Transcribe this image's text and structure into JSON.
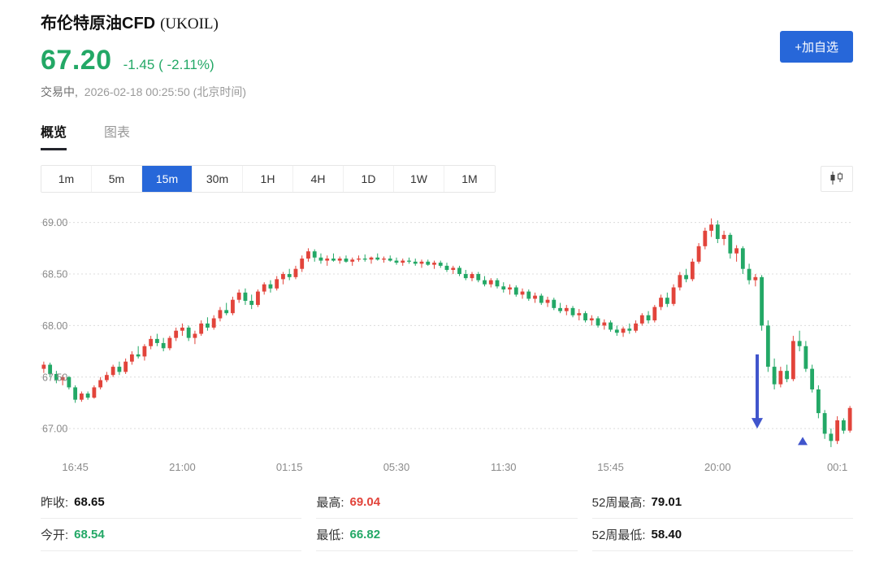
{
  "header": {
    "title": "布伦特原油CFD",
    "symbol": "(UKOIL)",
    "price": "67.20",
    "change": "-1.45 ( -2.11%)",
    "status": "交易中,",
    "timestamp": "2026-02-18 00:25:50",
    "timezone": "(北京时间)",
    "add_watchlist_label": "+加自选"
  },
  "colors": {
    "up_red": "#e2443b",
    "down_green": "#23a866",
    "accent_blue": "#2767d9",
    "annotation_blue": "#4055cc"
  },
  "tabs": [
    {
      "label": "概览",
      "active": true
    },
    {
      "label": "图表",
      "active": false
    }
  ],
  "timeframes": [
    {
      "label": "1m",
      "active": false
    },
    {
      "label": "5m",
      "active": false
    },
    {
      "label": "15m",
      "active": true
    },
    {
      "label": "30m",
      "active": false
    },
    {
      "label": "1H",
      "active": false
    },
    {
      "label": "4H",
      "active": false
    },
    {
      "label": "1D",
      "active": false
    },
    {
      "label": "1W",
      "active": false
    },
    {
      "label": "1M",
      "active": false
    }
  ],
  "chart_data": {
    "type": "candlestick",
    "interval": "15m",
    "up_color": "#e2443b",
    "down_color": "#23a866",
    "ylim": [
      66.78,
      69.1
    ],
    "y_ticks": [
      "69.00",
      "68.50",
      "68.00",
      "67.50",
      "67.00"
    ],
    "x_ticks": [
      "16:45",
      "21:00",
      "01:15",
      "05:30",
      "11:30",
      "15:45",
      "20:00",
      "00:1"
    ],
    "x_tick_indices": [
      5,
      22,
      39,
      56,
      73,
      90,
      107,
      126
    ],
    "candles": [
      [
        67.58,
        67.65,
        67.54,
        67.62
      ],
      [
        67.62,
        67.64,
        67.5,
        67.53
      ],
      [
        67.53,
        67.56,
        67.44,
        67.47
      ],
      [
        67.47,
        67.52,
        67.42,
        67.5
      ],
      [
        67.5,
        67.51,
        67.38,
        67.4
      ],
      [
        67.4,
        67.42,
        67.25,
        67.28
      ],
      [
        67.28,
        67.36,
        67.26,
        67.34
      ],
      [
        67.34,
        67.36,
        67.28,
        67.3
      ],
      [
        67.3,
        67.42,
        67.29,
        67.4
      ],
      [
        67.4,
        67.5,
        67.38,
        67.47
      ],
      [
        67.47,
        67.55,
        67.45,
        67.52
      ],
      [
        67.52,
        67.62,
        67.5,
        67.6
      ],
      [
        67.6,
        67.65,
        67.52,
        67.55
      ],
      [
        67.55,
        67.68,
        67.53,
        67.65
      ],
      [
        67.65,
        67.75,
        67.62,
        67.72
      ],
      [
        67.72,
        67.8,
        67.68,
        67.7
      ],
      [
        67.7,
        67.82,
        67.66,
        67.8
      ],
      [
        67.8,
        67.9,
        67.77,
        67.87
      ],
      [
        67.87,
        67.92,
        67.8,
        67.83
      ],
      [
        67.83,
        67.88,
        67.75,
        67.78
      ],
      [
        67.78,
        67.9,
        67.76,
        67.88
      ],
      [
        67.88,
        67.98,
        67.85,
        67.95
      ],
      [
        67.95,
        68.02,
        67.9,
        67.98
      ],
      [
        67.98,
        68.0,
        67.85,
        67.88
      ],
      [
        67.88,
        67.95,
        67.82,
        67.92
      ],
      [
        67.92,
        68.05,
        67.9,
        68.02
      ],
      [
        68.02,
        68.08,
        67.95,
        67.98
      ],
      [
        67.98,
        68.1,
        67.96,
        68.07
      ],
      [
        68.07,
        68.18,
        68.04,
        68.15
      ],
      [
        68.15,
        68.22,
        68.1,
        68.12
      ],
      [
        68.12,
        68.28,
        68.1,
        68.25
      ],
      [
        68.25,
        68.35,
        68.22,
        68.32
      ],
      [
        68.32,
        68.36,
        68.2,
        68.24
      ],
      [
        68.24,
        68.3,
        68.16,
        68.2
      ],
      [
        68.2,
        68.35,
        68.18,
        68.33
      ],
      [
        68.33,
        68.42,
        68.3,
        68.4
      ],
      [
        68.4,
        68.44,
        68.32,
        68.36
      ],
      [
        68.36,
        68.48,
        68.34,
        68.45
      ],
      [
        68.45,
        68.52,
        68.4,
        68.5
      ],
      [
        68.5,
        68.55,
        68.44,
        68.47
      ],
      [
        68.47,
        68.58,
        68.45,
        68.55
      ],
      [
        68.55,
        68.68,
        68.52,
        68.65
      ],
      [
        68.65,
        68.75,
        68.62,
        68.72
      ],
      [
        68.72,
        68.74,
        68.62,
        68.66
      ],
      [
        68.66,
        68.7,
        68.6,
        68.63
      ],
      [
        68.63,
        68.68,
        68.58,
        68.65
      ],
      [
        68.65,
        68.7,
        68.62,
        68.63
      ],
      [
        68.63,
        68.67,
        68.6,
        68.65
      ],
      [
        68.65,
        68.68,
        68.61,
        68.62
      ],
      [
        68.62,
        68.66,
        68.58,
        68.64
      ],
      [
        68.64,
        68.68,
        68.62,
        68.65
      ],
      [
        68.65,
        68.69,
        68.62,
        68.64
      ],
      [
        68.64,
        68.67,
        68.6,
        68.66
      ],
      [
        68.66,
        68.7,
        68.63,
        68.64
      ],
      [
        68.64,
        68.67,
        68.61,
        68.65
      ],
      [
        68.65,
        68.68,
        68.62,
        68.63
      ],
      [
        68.63,
        68.66,
        68.59,
        68.61
      ],
      [
        68.61,
        68.65,
        68.58,
        68.63
      ],
      [
        68.63,
        68.66,
        68.6,
        68.62
      ],
      [
        68.62,
        68.65,
        68.58,
        68.6
      ],
      [
        68.6,
        68.64,
        68.56,
        68.62
      ],
      [
        68.62,
        68.64,
        68.58,
        68.59
      ],
      [
        68.59,
        68.63,
        68.55,
        68.61
      ],
      [
        68.61,
        68.63,
        68.56,
        68.58
      ],
      [
        68.58,
        68.61,
        68.52,
        68.54
      ],
      [
        68.54,
        68.58,
        68.5,
        68.56
      ],
      [
        68.56,
        68.58,
        68.48,
        68.5
      ],
      [
        68.5,
        68.54,
        68.44,
        68.46
      ],
      [
        68.46,
        68.52,
        68.43,
        68.5
      ],
      [
        68.5,
        68.52,
        68.42,
        68.44
      ],
      [
        68.44,
        68.48,
        68.38,
        68.4
      ],
      [
        68.4,
        68.46,
        68.37,
        68.44
      ],
      [
        68.44,
        68.46,
        68.36,
        68.38
      ],
      [
        68.38,
        68.42,
        68.32,
        68.35
      ],
      [
        68.35,
        68.4,
        68.3,
        68.37
      ],
      [
        68.37,
        68.39,
        68.28,
        68.3
      ],
      [
        68.3,
        68.36,
        68.26,
        68.33
      ],
      [
        68.33,
        68.35,
        68.24,
        68.26
      ],
      [
        68.26,
        68.32,
        68.22,
        68.29
      ],
      [
        68.29,
        68.31,
        68.2,
        68.22
      ],
      [
        68.22,
        68.28,
        68.18,
        68.25
      ],
      [
        68.25,
        68.27,
        68.15,
        68.17
      ],
      [
        68.17,
        68.22,
        68.12,
        68.14
      ],
      [
        68.14,
        68.2,
        68.1,
        68.17
      ],
      [
        68.17,
        68.19,
        68.08,
        68.1
      ],
      [
        68.1,
        68.16,
        68.05,
        68.12
      ],
      [
        68.12,
        68.14,
        68.03,
        68.05
      ],
      [
        68.05,
        68.1,
        68.0,
        68.07
      ],
      [
        68.07,
        68.09,
        67.98,
        68.0
      ],
      [
        68.0,
        68.06,
        67.96,
        68.03
      ],
      [
        68.03,
        68.05,
        67.94,
        67.96
      ],
      [
        67.96,
        68.0,
        67.9,
        67.93
      ],
      [
        67.93,
        67.99,
        67.89,
        67.97
      ],
      [
        67.97,
        68.02,
        67.92,
        67.95
      ],
      [
        67.95,
        68.05,
        67.93,
        68.02
      ],
      [
        68.02,
        68.12,
        68.0,
        68.1
      ],
      [
        68.1,
        68.14,
        68.02,
        68.05
      ],
      [
        68.05,
        68.2,
        68.03,
        68.18
      ],
      [
        68.18,
        68.3,
        68.15,
        68.27
      ],
      [
        68.27,
        68.32,
        68.18,
        68.21
      ],
      [
        68.21,
        68.4,
        68.19,
        68.37
      ],
      [
        68.37,
        68.52,
        68.34,
        68.49
      ],
      [
        68.49,
        68.55,
        68.42,
        68.45
      ],
      [
        68.45,
        68.65,
        68.43,
        68.62
      ],
      [
        68.62,
        68.8,
        68.6,
        68.77
      ],
      [
        68.77,
        68.95,
        68.74,
        68.92
      ],
      [
        68.92,
        69.04,
        68.86,
        68.98
      ],
      [
        68.98,
        69.02,
        68.8,
        68.84
      ],
      [
        68.84,
        68.92,
        68.78,
        68.88
      ],
      [
        68.88,
        68.9,
        68.65,
        68.7
      ],
      [
        68.7,
        68.78,
        68.62,
        68.75
      ],
      [
        68.75,
        68.77,
        68.5,
        68.55
      ],
      [
        68.55,
        68.6,
        68.4,
        68.44
      ],
      [
        68.44,
        68.5,
        68.38,
        68.47
      ],
      [
        68.47,
        68.49,
        67.95,
        68.0
      ],
      [
        68.0,
        68.05,
        67.55,
        67.6
      ],
      [
        67.6,
        67.68,
        67.38,
        67.43
      ],
      [
        67.43,
        67.6,
        67.4,
        67.56
      ],
      [
        67.56,
        67.62,
        67.45,
        67.48
      ],
      [
        67.48,
        67.9,
        67.46,
        67.85
      ],
      [
        67.85,
        67.95,
        67.75,
        67.8
      ],
      [
        67.8,
        67.85,
        67.55,
        67.58
      ],
      [
        67.58,
        67.62,
        67.35,
        67.38
      ],
      [
        67.38,
        67.42,
        67.1,
        67.15
      ],
      [
        67.15,
        67.18,
        66.9,
        66.95
      ],
      [
        66.95,
        67.0,
        66.82,
        66.88
      ],
      [
        66.88,
        67.12,
        66.85,
        67.08
      ],
      [
        67.08,
        67.1,
        66.95,
        66.98
      ],
      [
        66.98,
        67.22,
        66.96,
        67.2
      ]
    ],
    "annotations": [
      {
        "type": "arrow-down",
        "x_frac": 0.882,
        "from_price": 67.72,
        "to_price": 67.0,
        "color": "#4055cc"
      },
      {
        "type": "triangle-up",
        "x_frac": 0.938,
        "price": 66.88,
        "color": "#4055cc"
      }
    ]
  },
  "stats": [
    {
      "label": "昨收:",
      "value": "68.65",
      "color": "#111111"
    },
    {
      "label": "最高:",
      "value": "69.04",
      "color": "#e2443b"
    },
    {
      "label": "52周最高:",
      "value": "79.01",
      "color": "#111111"
    },
    {
      "label": "今开:",
      "value": "68.54",
      "color": "#23a866"
    },
    {
      "label": "最低:",
      "value": "66.82",
      "color": "#23a866"
    },
    {
      "label": "52周最低:",
      "value": "58.40",
      "color": "#111111"
    }
  ]
}
